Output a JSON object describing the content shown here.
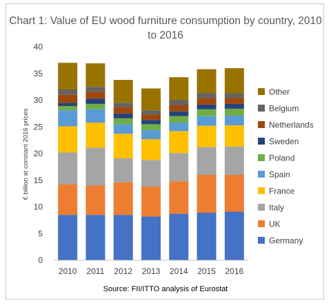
{
  "chart_data": {
    "type": "bar",
    "stacked": true,
    "title": "Chart 1: Value of EU wood furniture consumption by country, 2010 to 2016",
    "ylabel": "€ billion at constant 2016 prices",
    "xlabel": "",
    "source": "Source: FII/ITTO analysis of Eurostat",
    "ylim": [
      0,
      40
    ],
    "yticks": [
      0,
      5,
      10,
      15,
      20,
      25,
      30,
      35,
      40
    ],
    "grid": false,
    "legend_position": "right",
    "categories": [
      "2010",
      "2011",
      "2012",
      "2013",
      "2014",
      "2015",
      "2016"
    ],
    "series": [
      {
        "name": "Germany",
        "color": "#4472c4",
        "values": [
          8.5,
          8.5,
          8.5,
          8.2,
          8.7,
          8.9,
          9.1
        ]
      },
      {
        "name": "UK",
        "color": "#ed7d31",
        "values": [
          5.7,
          5.5,
          6.1,
          5.6,
          6.1,
          7.1,
          6.9
        ]
      },
      {
        "name": "Italy",
        "color": "#a5a5a5",
        "values": [
          6.0,
          7.1,
          4.5,
          5.0,
          5.3,
          5.2,
          5.3
        ]
      },
      {
        "name": "France",
        "color": "#ffc000",
        "values": [
          4.9,
          4.7,
          4.6,
          3.9,
          4.1,
          4.0,
          4.0
        ]
      },
      {
        "name": "Spain",
        "color": "#5b9bd5",
        "values": [
          3.0,
          2.5,
          1.8,
          1.7,
          1.6,
          1.8,
          1.8
        ]
      },
      {
        "name": "Poland",
        "color": "#70ad47",
        "values": [
          0.8,
          1.0,
          1.1,
          1.1,
          1.2,
          1.3,
          1.3
        ]
      },
      {
        "name": "Sweden",
        "color": "#264478",
        "values": [
          0.6,
          1.0,
          0.9,
          0.8,
          0.9,
          0.9,
          0.9
        ]
      },
      {
        "name": "Netherlands",
        "color": "#9e480e",
        "values": [
          1.5,
          1.3,
          1.2,
          1.0,
          1.2,
          1.2,
          1.1
        ]
      },
      {
        "name": "Belgium",
        "color": "#636363",
        "values": [
          1.0,
          0.9,
          0.8,
          0.8,
          0.9,
          0.9,
          0.9
        ]
      },
      {
        "name": "Other",
        "color": "#997300",
        "values": [
          5.0,
          4.4,
          4.3,
          4.1,
          4.3,
          4.5,
          4.7
        ]
      }
    ]
  }
}
